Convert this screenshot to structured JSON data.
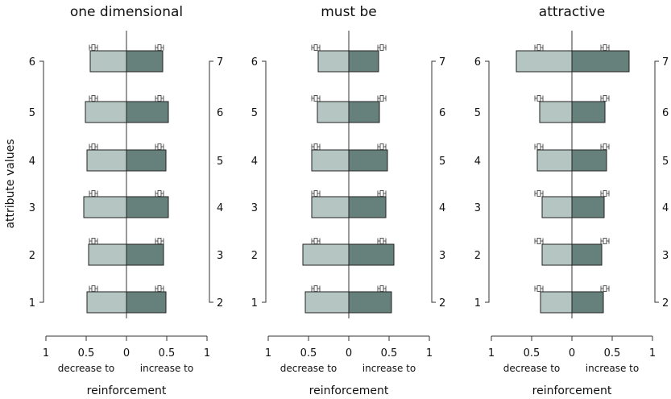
{
  "y_axis_label": "attribute values",
  "chart_data": [
    {
      "type": "bar",
      "title": "one dimensional",
      "left_tick_labels": [
        "1",
        "2",
        "3",
        "4",
        "5",
        "6"
      ],
      "right_tick_labels": [
        "2",
        "3",
        "4",
        "5",
        "6",
        "7"
      ],
      "decrease_values": [
        0.49,
        0.47,
        0.53,
        0.49,
        0.51,
        0.45
      ],
      "increase_values": [
        0.49,
        0.46,
        0.52,
        0.49,
        0.52,
        0.45
      ],
      "decrease_error": [
        [
          0.36,
          0.46
        ],
        [
          0.36,
          0.46
        ],
        [
          0.36,
          0.46
        ],
        [
          0.36,
          0.46
        ],
        [
          0.36,
          0.46
        ],
        [
          0.36,
          0.46
        ]
      ],
      "increase_error": [
        [
          0.36,
          0.46
        ],
        [
          0.36,
          0.46
        ],
        [
          0.36,
          0.46
        ],
        [
          0.36,
          0.46
        ],
        [
          0.36,
          0.46
        ],
        [
          0.36,
          0.46
        ]
      ],
      "x_tick_labels": [
        "1",
        "0.5",
        "0",
        "0.5",
        "1"
      ],
      "xlim": [
        -1,
        1
      ],
      "xlabel_left": "decrease to",
      "xlabel_right": "increase to",
      "xlabel": "reinforcement"
    },
    {
      "type": "bar",
      "title": "must be",
      "left_tick_labels": [
        "1",
        "2",
        "3",
        "4",
        "5",
        "6"
      ],
      "right_tick_labels": [
        "2",
        "3",
        "4",
        "5",
        "6",
        "7"
      ],
      "decrease_values": [
        0.54,
        0.57,
        0.46,
        0.46,
        0.39,
        0.38
      ],
      "increase_values": [
        0.53,
        0.56,
        0.46,
        0.48,
        0.38,
        0.37
      ],
      "decrease_error": [
        [
          0.36,
          0.46
        ],
        [
          0.36,
          0.46
        ],
        [
          0.36,
          0.46
        ],
        [
          0.36,
          0.46
        ],
        [
          0.36,
          0.46
        ],
        [
          0.36,
          0.46
        ]
      ],
      "increase_error": [
        [
          0.36,
          0.46
        ],
        [
          0.36,
          0.46
        ],
        [
          0.36,
          0.46
        ],
        [
          0.36,
          0.46
        ],
        [
          0.36,
          0.46
        ],
        [
          0.36,
          0.46
        ]
      ],
      "x_tick_labels": [
        "1",
        "0.5",
        "0",
        "0.5",
        "1"
      ],
      "xlim": [
        -1,
        1
      ],
      "xlabel_left": "decrease to",
      "xlabel_right": "increase to",
      "xlabel": "reinforcement"
    },
    {
      "type": "bar",
      "title": "attractive",
      "left_tick_labels": [
        "1",
        "2",
        "3",
        "4",
        "5",
        "6"
      ],
      "right_tick_labels": [
        "2",
        "3",
        "4",
        "5",
        "6",
        "7"
      ],
      "decrease_values": [
        0.39,
        0.37,
        0.37,
        0.43,
        0.4,
        0.69
      ],
      "increase_values": [
        0.39,
        0.37,
        0.4,
        0.43,
        0.41,
        0.71
      ],
      "decrease_error": [
        [
          0.36,
          0.46
        ],
        [
          0.36,
          0.46
        ],
        [
          0.36,
          0.46
        ],
        [
          0.36,
          0.46
        ],
        [
          0.36,
          0.46
        ],
        [
          0.36,
          0.46
        ]
      ],
      "increase_error": [
        [
          0.36,
          0.46
        ],
        [
          0.36,
          0.46
        ],
        [
          0.36,
          0.46
        ],
        [
          0.36,
          0.46
        ],
        [
          0.36,
          0.46
        ],
        [
          0.36,
          0.46
        ]
      ],
      "x_tick_labels": [
        "1",
        "0.5",
        "0",
        "0.5",
        "1"
      ],
      "xlim": [
        -1,
        1
      ],
      "xlabel_left": "decrease to",
      "xlabel_right": "increase to",
      "xlabel": "reinforcement"
    }
  ]
}
